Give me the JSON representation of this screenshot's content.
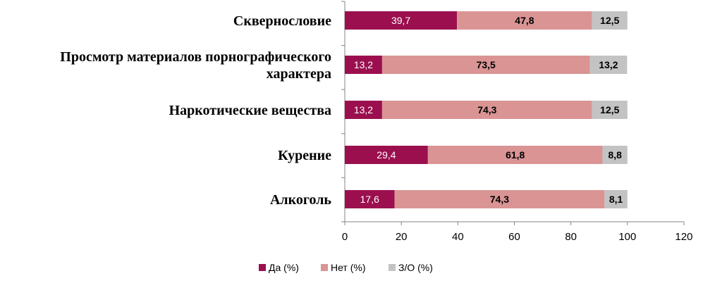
{
  "chart_data": {
    "type": "bar",
    "orientation": "horizontal",
    "stacked": true,
    "categories": [
      [
        "Сквернословие"
      ],
      [
        "Просмотр материалов порнографического",
        "характера"
      ],
      [
        "Наркотические вещества"
      ],
      [
        "Курение"
      ],
      [
        "Алкоголь"
      ]
    ],
    "series": [
      {
        "name": "Да (%)",
        "color": "#9b0f4f",
        "label_color": "#ffffff",
        "label_bold": false,
        "values": [
          39.7,
          13.2,
          13.2,
          29.4,
          17.6
        ],
        "labels": [
          "39,7",
          "13,2",
          "13,2",
          "29,4",
          "17,6"
        ]
      },
      {
        "name": "Нет (%)",
        "color": "#da9494",
        "label_color": "#000000",
        "label_bold": true,
        "values": [
          47.8,
          73.5,
          74.3,
          61.8,
          74.3
        ],
        "labels": [
          "47,8",
          "73,5",
          "74,3",
          "61,8",
          "74,3"
        ]
      },
      {
        "name": "З/О (%)",
        "color": "#c3c3c3",
        "label_color": "#000000",
        "label_bold": true,
        "values": [
          12.5,
          13.2,
          12.5,
          8.8,
          8.1
        ],
        "labels": [
          "12,5",
          "13,2",
          "12,5",
          "8,8",
          "8,1"
        ]
      }
    ],
    "xlim": [
      0,
      120
    ],
    "xticks": [
      0,
      20,
      40,
      60,
      80,
      100,
      120
    ],
    "xlabel": "",
    "ylabel": "",
    "title": "",
    "grid": false,
    "legend_position": "bottom"
  }
}
